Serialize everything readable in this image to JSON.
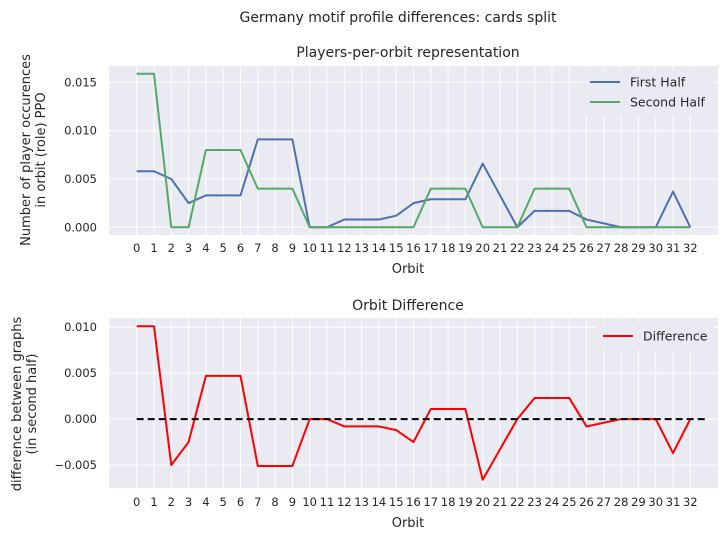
{
  "suptitle": "Germany motif profile differences: cards split",
  "colors": {
    "first_half": "#4c72b0",
    "second_half": "#55a868",
    "difference": "#ff0000",
    "baseline": "#000000",
    "axes_bg": "#eaeaf2",
    "grid": "#ffffff"
  },
  "chart_data": [
    {
      "type": "line",
      "title": "Players-per-orbit representation",
      "xlabel": "Orbit",
      "ylabel": [
        "Number of player occurences",
        "in orbit (role) PPO"
      ],
      "x": [
        0,
        1,
        2,
        3,
        4,
        5,
        6,
        7,
        8,
        9,
        10,
        11,
        12,
        13,
        14,
        15,
        16,
        17,
        18,
        19,
        20,
        21,
        22,
        23,
        24,
        25,
        26,
        27,
        28,
        29,
        30,
        31,
        32
      ],
      "xlim": [
        -1.6,
        33.6
      ],
      "ylim": [
        -0.0008,
        0.0167
      ],
      "yticks": [
        0.0,
        0.005,
        0.01,
        0.015
      ],
      "ytick_labels": [
        "0.000",
        "0.005",
        "0.010",
        "0.015"
      ],
      "grid": true,
      "legend_position": "top-right",
      "series": [
        {
          "name": "First Half",
          "color": "#4c72b0",
          "values": [
            0.0058,
            0.0058,
            0.005,
            0.0025,
            0.0033,
            0.0033,
            0.0033,
            0.0091,
            0.0091,
            0.0091,
            0.0,
            0.0,
            0.0008,
            0.0008,
            0.0008,
            0.0012,
            0.0025,
            0.0029,
            0.0029,
            0.0029,
            0.0066,
            0.0033,
            0.0,
            0.0017,
            0.0017,
            0.0017,
            0.0008,
            0.0004,
            0.0,
            0.0,
            0.0,
            0.0037,
            0.0
          ]
        },
        {
          "name": "Second Half",
          "color": "#55a868",
          "values": [
            0.0159,
            0.0159,
            0.0,
            0.0,
            0.008,
            0.008,
            0.008,
            0.004,
            0.004,
            0.004,
            0.0,
            0.0,
            0.0,
            0.0,
            0.0,
            0.0,
            0.0,
            0.004,
            0.004,
            0.004,
            0.0,
            0.0,
            0.0,
            0.004,
            0.004,
            0.004,
            0.0,
            0.0,
            0.0,
            0.0,
            0.0,
            0.0,
            0.0
          ]
        }
      ]
    },
    {
      "type": "line",
      "title": "Orbit Difference",
      "xlabel": "Orbit",
      "ylabel": [
        "difference between graphs",
        "(in second half)"
      ],
      "x": [
        0,
        1,
        2,
        3,
        4,
        5,
        6,
        7,
        8,
        9,
        10,
        11,
        12,
        13,
        14,
        15,
        16,
        17,
        18,
        19,
        20,
        21,
        22,
        23,
        24,
        25,
        26,
        27,
        28,
        29,
        30,
        31,
        32
      ],
      "xlim": [
        -1.6,
        33.6
      ],
      "ylim": [
        -0.0075,
        0.011
      ],
      "yticks": [
        -0.005,
        0.0,
        0.005,
        0.01
      ],
      "ytick_labels": [
        "−0.005",
        "0.000",
        "0.005",
        "0.010"
      ],
      "grid": true,
      "legend_position": "top-right",
      "series": [
        {
          "name": "Difference",
          "color": "#ff0000",
          "values": [
            0.0101,
            0.0101,
            -0.005,
            -0.0025,
            0.0047,
            0.0047,
            0.0047,
            -0.0051,
            -0.0051,
            -0.0051,
            0.0,
            0.0,
            -0.0008,
            -0.0008,
            -0.0008,
            -0.0012,
            -0.0025,
            0.0011,
            0.0011,
            0.0011,
            -0.0066,
            -0.0033,
            0.0,
            0.0023,
            0.0023,
            0.0023,
            -0.0008,
            -0.0004,
            0.0,
            0.0,
            0.0,
            -0.0037,
            0.0
          ]
        },
        {
          "name": "",
          "color": "#000000",
          "dashed": true,
          "x": [
            0,
            33
          ],
          "values": [
            0.0,
            0.0
          ]
        }
      ]
    }
  ]
}
